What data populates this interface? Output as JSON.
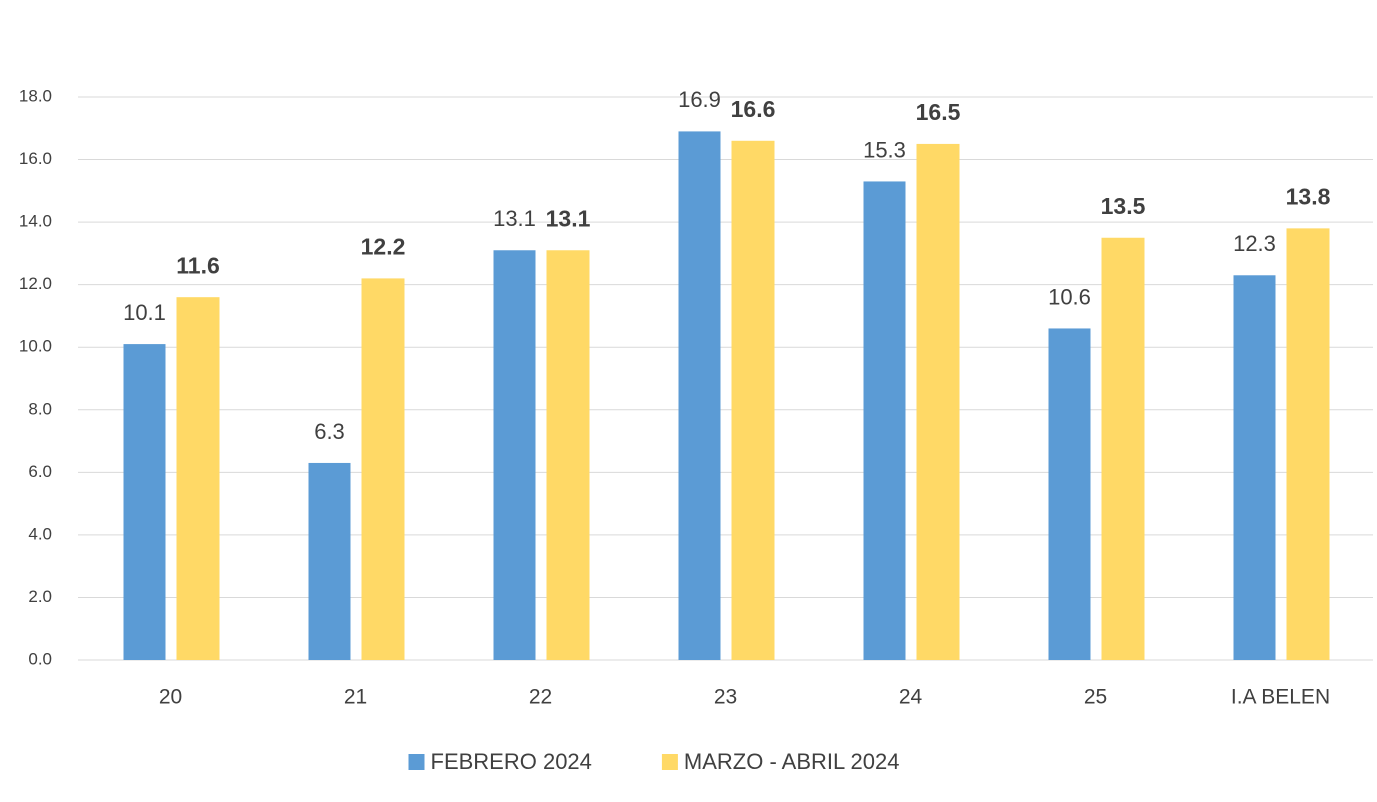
{
  "chart_data": {
    "type": "bar",
    "categories": [
      "20",
      "21",
      "22",
      "23",
      "24",
      "25",
      "I.A BELEN"
    ],
    "series": [
      {
        "name": "FEBRERO 2024",
        "color": "#5b9bd5",
        "values": [
          10.1,
          6.3,
          13.1,
          16.9,
          15.3,
          10.6,
          12.3
        ]
      },
      {
        "name": "MARZO - ABRIL 2024",
        "color": "#ffd966",
        "values": [
          11.6,
          12.2,
          13.1,
          16.6,
          16.5,
          13.5,
          13.8
        ]
      }
    ],
    "ylim": [
      0,
      18
    ],
    "yticks": [
      {
        "value": 0,
        "label": "0.0"
      },
      {
        "value": 2,
        "label": "2.0"
      },
      {
        "value": 4,
        "label": "4.0"
      },
      {
        "value": 6,
        "label": "6.0"
      },
      {
        "value": 8,
        "label": "8.0"
      },
      {
        "value": 10,
        "label": "10.0"
      },
      {
        "value": 12,
        "label": "12.0"
      },
      {
        "value": 14,
        "label": "14.0"
      },
      {
        "value": 16,
        "label": "16.0"
      },
      {
        "value": 18,
        "label": "18.0"
      }
    ],
    "grid": true,
    "legend": "bottom"
  }
}
